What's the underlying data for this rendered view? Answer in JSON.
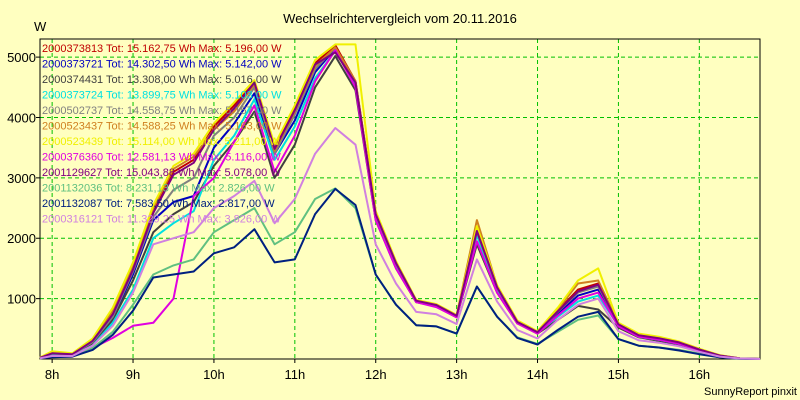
{
  "chart_data": {
    "type": "line",
    "title": "Wechselrichtervergleich vom 20.11.2016",
    "ylabel": "W",
    "xlabel": "",
    "footer": "SunnyReport pinxit",
    "ylim": [
      0,
      5300
    ],
    "yticks": [
      1000,
      2000,
      3000,
      4000,
      5000
    ],
    "xlim": [
      7.85,
      16.75
    ],
    "xticks": [
      {
        "value": 8,
        "label": "8h"
      },
      {
        "value": 9,
        "label": "9h"
      },
      {
        "value": 10,
        "label": "10h"
      },
      {
        "value": 11,
        "label": "11h"
      },
      {
        "value": 12,
        "label": "12h"
      },
      {
        "value": 13,
        "label": "13h"
      },
      {
        "value": 14,
        "label": "14h"
      },
      {
        "value": 15,
        "label": "15h"
      },
      {
        "value": 16,
        "label": "16h"
      }
    ],
    "grid": true,
    "legend_position": "top-left",
    "x": [
      7.85,
      8.0,
      8.25,
      8.5,
      8.75,
      9.0,
      9.25,
      9.5,
      9.75,
      10.0,
      10.25,
      10.5,
      10.75,
      11.0,
      11.25,
      11.5,
      11.75,
      12.0,
      12.25,
      12.5,
      12.75,
      13.0,
      13.25,
      13.5,
      13.75,
      14.0,
      14.25,
      14.5,
      14.75,
      15.0,
      15.25,
      15.5,
      15.75,
      16.0,
      16.25,
      16.5,
      16.75
    ],
    "series": [
      {
        "name": "2000373813 Tot: 15.162,75 Wh Max: 5.196,00 W",
        "color": "#c00000",
        "values": [
          20,
          100,
          80,
          300,
          750,
          1500,
          2450,
          3100,
          3300,
          3850,
          4200,
          4600,
          3500,
          4150,
          4900,
          5196,
          4600,
          2400,
          1600,
          970,
          900,
          720,
          2150,
          1200,
          620,
          450,
          800,
          1150,
          1250,
          580,
          400,
          350,
          280,
          160,
          60,
          10,
          0
        ]
      },
      {
        "name": "2000373721 Tot: 14.302,50 Wh Max: 5.142,00 W",
        "color": "#0000c0",
        "values": [
          20,
          80,
          70,
          260,
          680,
          1400,
          2300,
          2600,
          2700,
          3500,
          3900,
          4400,
          3400,
          3950,
          4750,
          5142,
          4550,
          2350,
          1560,
          950,
          880,
          700,
          2100,
          1150,
          600,
          430,
          750,
          1050,
          1150,
          560,
          380,
          330,
          260,
          150,
          50,
          10,
          0
        ]
      },
      {
        "name": "2000374431 Tot: 13.308,00 Wh Max: 5.016,00 W",
        "color": "#404040",
        "values": [
          15,
          60,
          60,
          250,
          650,
          1300,
          2100,
          2400,
          2600,
          3200,
          3600,
          4100,
          3000,
          3550,
          4500,
          5016,
          4450,
          2300,
          1500,
          940,
          870,
          690,
          1900,
          1100,
          590,
          420,
          650,
          880,
          820,
          520,
          360,
          300,
          240,
          140,
          50,
          10,
          0
        ]
      },
      {
        "name": "2000373724 Tot: 13.899,75 Wh Max: 5.103,00 W",
        "color": "#00e0e0",
        "values": [
          15,
          70,
          60,
          220,
          600,
          1150,
          2000,
          2250,
          2450,
          3300,
          3700,
          4300,
          3300,
          3850,
          4650,
          5103,
          4550,
          2350,
          1550,
          950,
          880,
          700,
          2050,
          1120,
          600,
          430,
          700,
          950,
          1050,
          550,
          370,
          320,
          250,
          145,
          50,
          10,
          0
        ]
      },
      {
        "name": "2000502737 Tot: 14.558,75 Wh Max: 5.157,00 W",
        "color": "#808080",
        "values": [
          20,
          90,
          75,
          280,
          700,
          1450,
          2350,
          2800,
          3000,
          3700,
          4000,
          4500,
          3400,
          4050,
          4800,
          5157,
          4580,
          2380,
          1580,
          960,
          890,
          710,
          2100,
          1180,
          610,
          440,
          780,
          1100,
          1200,
          570,
          390,
          340,
          270,
          155,
          55,
          10,
          0
        ]
      },
      {
        "name": "2000523437 Tot: 14.588,25 Wh Max: 5.163,00 W",
        "color": "#d08020",
        "values": [
          25,
          110,
          90,
          320,
          800,
          1550,
          2500,
          3150,
          3350,
          3800,
          4100,
          4550,
          3450,
          4100,
          4850,
          5163,
          4600,
          2420,
          1600,
          970,
          900,
          720,
          2300,
          1210,
          630,
          450,
          820,
          1250,
          1300,
          590,
          410,
          360,
          285,
          165,
          60,
          10,
          0
        ]
      },
      {
        "name": "2000523439 Tot: 15.114,00 Wh Max: 5.211,00 W",
        "color": "#f0f000",
        "values": [
          25,
          130,
          95,
          340,
          850,
          1600,
          2550,
          3200,
          3400,
          3900,
          4250,
          4620,
          3550,
          4200,
          4950,
          5211,
          5211,
          2450,
          1620,
          980,
          910,
          730,
          2200,
          1220,
          640,
          460,
          850,
          1300,
          1500,
          600,
          420,
          370,
          290,
          170,
          65,
          10,
          0
        ]
      },
      {
        "name": "2000376360 Tot: 12.581,13 Wh Max: 5.116,00 W",
        "color": "#e000e0",
        "values": [
          10,
          40,
          40,
          180,
          350,
          550,
          600,
          1000,
          2700,
          3000,
          3600,
          4200,
          3100,
          3700,
          4600,
          5116,
          4500,
          2300,
          1500,
          940,
          860,
          690,
          1950,
          1100,
          590,
          420,
          720,
          1000,
          1100,
          540,
          370,
          320,
          250,
          145,
          50,
          10,
          0
        ]
      },
      {
        "name": "2001129627 Tot: 15.043,88 Wh Max: 5.078,00 W",
        "color": "#800080",
        "values": [
          20,
          95,
          80,
          300,
          740,
          1480,
          2420,
          3050,
          3250,
          3800,
          4150,
          4580,
          3480,
          4120,
          4880,
          5078,
          4580,
          2400,
          1590,
          965,
          895,
          715,
          2120,
          1190,
          615,
          445,
          790,
          1120,
          1230,
          575,
          395,
          345,
          275,
          158,
          58,
          10,
          0
        ]
      },
      {
        "name": "2001132036 Tot: 8.231,13 Wh Max: 2.826,00 W",
        "color": "#60c080",
        "values": [
          10,
          40,
          50,
          180,
          450,
          900,
          1400,
          1550,
          1650,
          2100,
          2300,
          2500,
          1900,
          2100,
          2650,
          2826,
          2500,
          1400,
          900,
          560,
          540,
          420,
          1200,
          700,
          360,
          250,
          450,
          650,
          720,
          330,
          220,
          190,
          150,
          90,
          30,
          5,
          0
        ]
      },
      {
        "name": "2001132087 Tot: 7.583,50 Wh Max: 2.817,00 W",
        "color": "#002080",
        "values": [
          10,
          30,
          40,
          150,
          400,
          800,
          1350,
          1400,
          1450,
          1750,
          1850,
          2150,
          1600,
          1650,
          2400,
          2817,
          2550,
          1400,
          900,
          560,
          540,
          420,
          1200,
          700,
          350,
          240,
          480,
          700,
          780,
          330,
          220,
          190,
          140,
          80,
          30,
          5,
          0
        ]
      },
      {
        "name": "2000316121 Tot: 11.329,25 Wh Max: 3.826,00 W",
        "color": "#d080e0",
        "values": [
          12,
          50,
          50,
          220,
          550,
          1100,
          1900,
          2000,
          2100,
          2500,
          2700,
          2950,
          2250,
          2650,
          3400,
          3826,
          3550,
          1900,
          1250,
          780,
          740,
          580,
          1650,
          950,
          480,
          340,
          650,
          900,
          1000,
          460,
          310,
          270,
          210,
          120,
          40,
          8,
          0
        ]
      }
    ]
  }
}
